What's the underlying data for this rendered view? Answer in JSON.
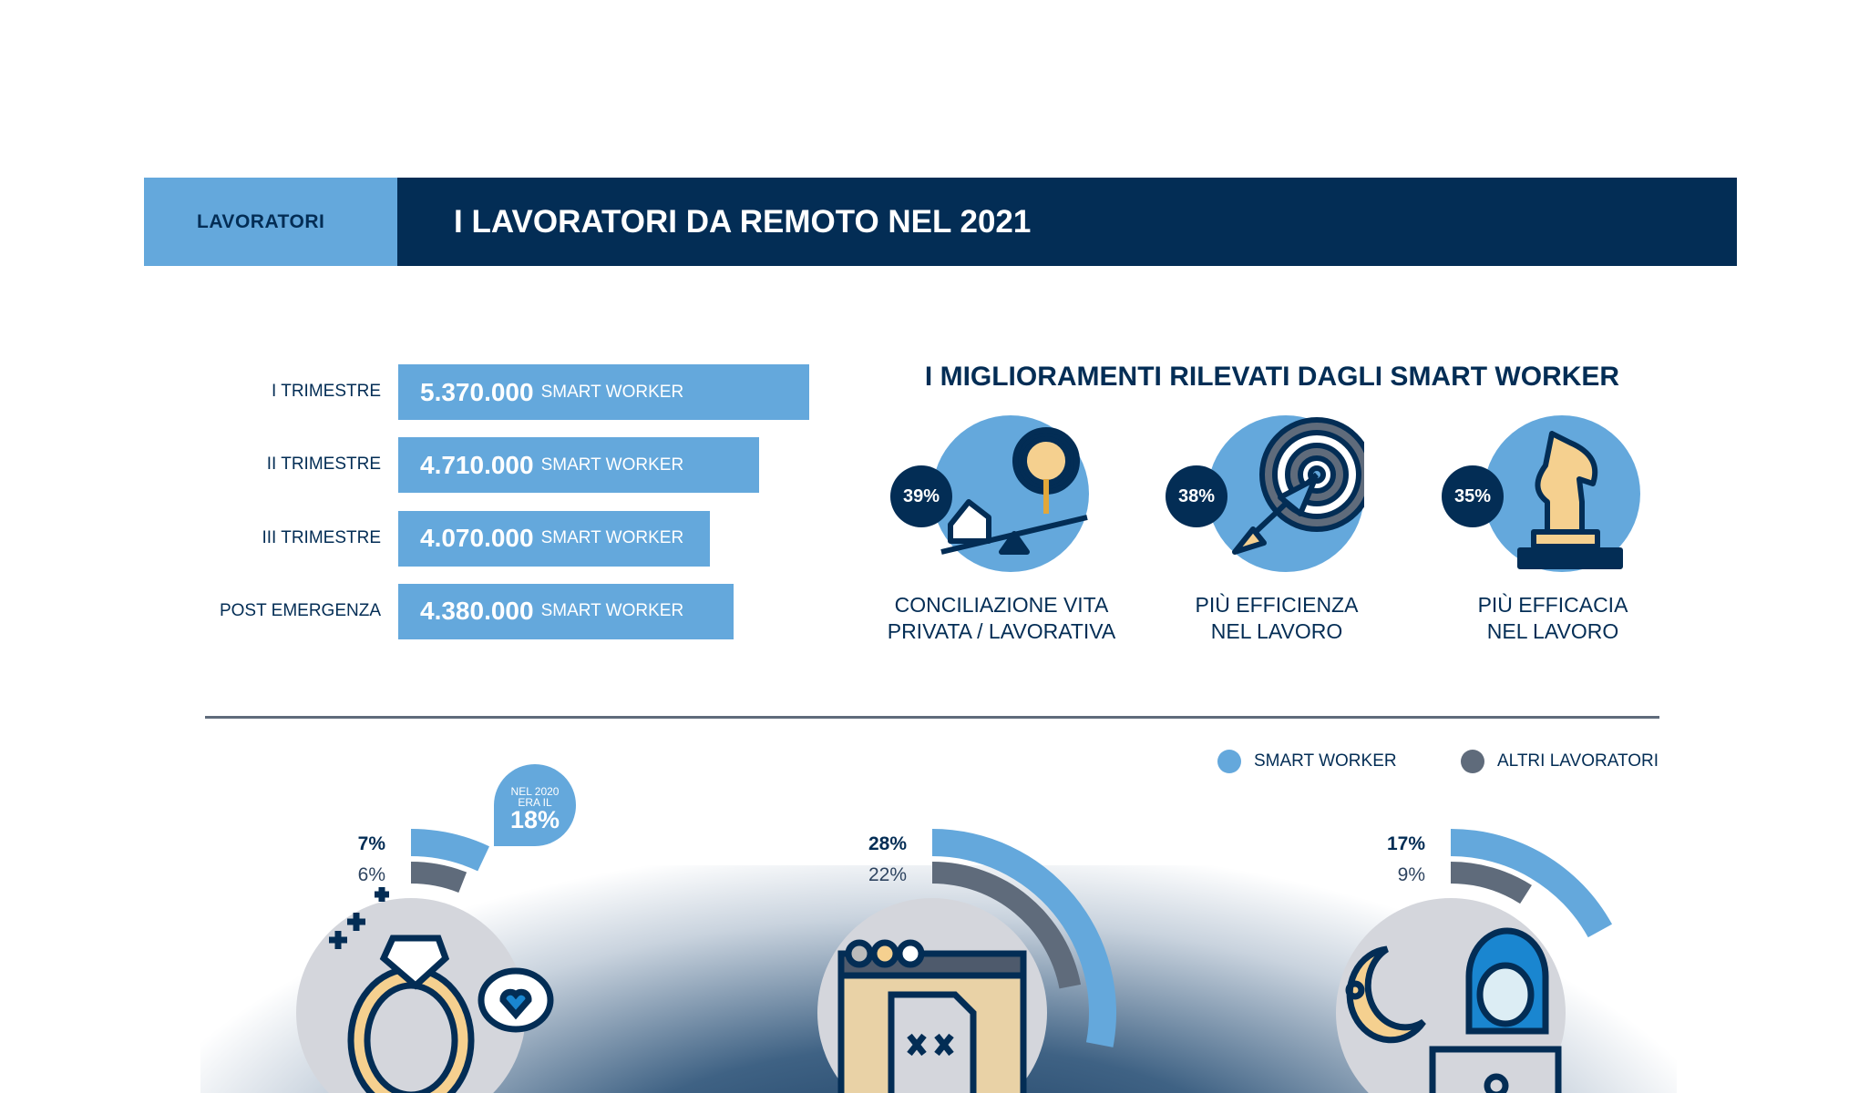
{
  "header": {
    "section": "LAVORATORI",
    "title": "I LAVORATORI DA REMOTO NEL 2021"
  },
  "chart_data": [
    {
      "type": "bar",
      "orientation": "horizontal",
      "categories": [
        "I TRIMESTRE",
        "II TRIMESTRE",
        "III TRIMESTRE",
        "POST EMERGENZA"
      ],
      "values": [
        5370000,
        4710000,
        4070000,
        4380000
      ],
      "value_labels": [
        "5.370.000",
        "4.710.000",
        "4.070.000",
        "4.380.000"
      ],
      "unit": "SMART WORKER",
      "color": "#64a8dc"
    },
    {
      "type": "pie",
      "title": "I MIGLIORAMENTI RILEVATI DAGLI SMART WORKER",
      "items": [
        {
          "label_line1": "CONCILIAZIONE VITA",
          "label_line2": "PRIVATA / LAVORATIVA",
          "value": 39,
          "display": "39%",
          "icon": "house-seesaw-gear-icon"
        },
        {
          "label_line1": "PIÙ EFFICIENZA",
          "label_line2": "NEL LAVORO",
          "value": 38,
          "display": "38%",
          "icon": "target-arrow-icon"
        },
        {
          "label_line1": "PIÙ EFFICACIA",
          "label_line2": "NEL LAVORO",
          "value": 35,
          "display": "35%",
          "icon": "chess-knight-icon"
        }
      ]
    },
    {
      "type": "bar",
      "style": "radial",
      "legend": [
        "SMART WORKER",
        "ALTRI LAVORATORI"
      ],
      "legend_colors": [
        "#64a8dc",
        "#5f6b7b"
      ],
      "legend_placement": "top-right",
      "groups": [
        {
          "icon": "ring-heart-icon",
          "smart": 7,
          "smart_label": "7%",
          "altri": 6,
          "altri_label": "6%",
          "note": {
            "line1": "NEL 2020",
            "line2": "ERA IL",
            "value": "18%"
          }
        },
        {
          "icon": "broken-document-icon",
          "smart": 28,
          "smart_label": "28%",
          "altri": 22,
          "altri_label": "22%"
        },
        {
          "icon": "night-laptop-worker-icon",
          "smart": 17,
          "smart_label": "17%",
          "altri": 9,
          "altri_label": "9%"
        }
      ]
    }
  ],
  "colors": {
    "navy": "#032d55",
    "light_blue": "#64a8dc",
    "grey": "#5f6b7b"
  }
}
